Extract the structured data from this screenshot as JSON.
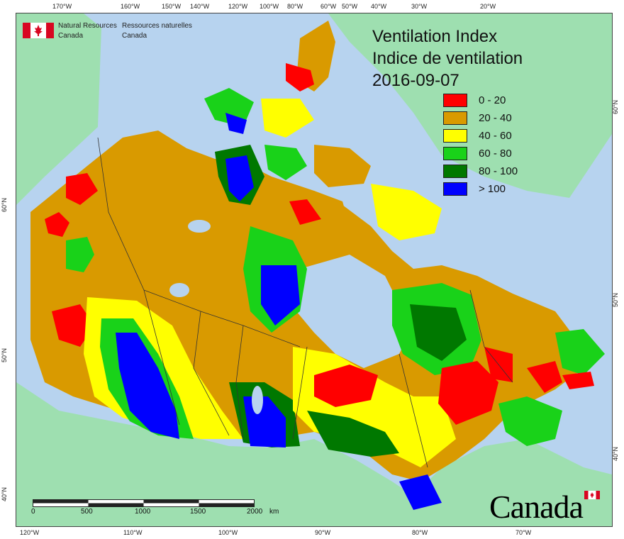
{
  "title": {
    "line1": "Ventilation Index",
    "line2": "Indice de ventilation",
    "date": "2016-09-07"
  },
  "agency": {
    "name_en_line1": "Natural Resources",
    "name_en_line2": "Canada",
    "name_fr_line1": "Ressources naturelles",
    "name_fr_line2": "Canada"
  },
  "wordmark": "Canada",
  "legend": [
    {
      "label": "0 - 20",
      "color": "#ff0000"
    },
    {
      "label": "20 - 40",
      "color": "#d99a00"
    },
    {
      "label": "40 - 60",
      "color": "#ffff00"
    },
    {
      "label": "60 - 80",
      "color": "#19d219"
    },
    {
      "label": "80 - 100",
      "color": "#007800"
    },
    {
      "label": "> 100",
      "color": "#0000ff"
    }
  ],
  "graticule": {
    "top": [
      "170°W",
      "160°W",
      "150°W",
      "140°W",
      "120°W",
      "100°W",
      "80°W",
      "60°W",
      "50°W",
      "40°W",
      "30°W",
      "20°W"
    ],
    "bottom": [
      "120°W",
      "110°W",
      "100°W",
      "90°W",
      "80°W",
      "70°W"
    ],
    "left": [
      "60°N",
      "50°N",
      "40°N"
    ],
    "right": [
      "60°N",
      "50°N",
      "40°N"
    ]
  },
  "scale": {
    "labels": [
      "0",
      "500",
      "1000",
      "1500",
      "2000"
    ],
    "unit": "km"
  },
  "colors": {
    "ocean": "#b7d3ef",
    "land_outside": "#9edfb0",
    "border": "#333333"
  }
}
